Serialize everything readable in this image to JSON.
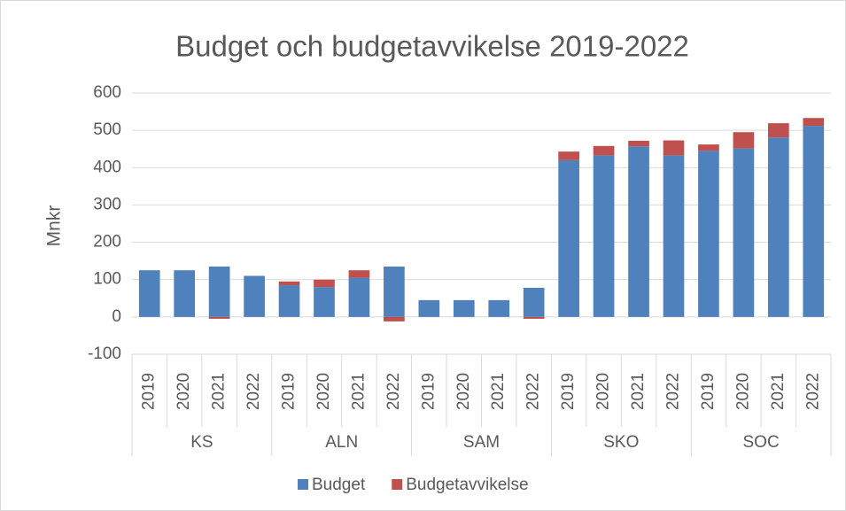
{
  "chart_data": {
    "type": "bar",
    "stacked": true,
    "title": "Budget och budgetavvikelse 2019-2022",
    "y_label": "Mnkr",
    "groups": [
      {
        "label": "KS",
        "categories": [
          "2019",
          "2020",
          "2021",
          "2022"
        ]
      },
      {
        "label": "ALN",
        "categories": [
          "2019",
          "2020",
          "2021",
          "2022"
        ]
      },
      {
        "label": "SAM",
        "categories": [
          "2019",
          "2020",
          "2021",
          "2022"
        ]
      },
      {
        "label": "SKO",
        "categories": [
          "2019",
          "2020",
          "2021",
          "2022"
        ]
      },
      {
        "label": "SOC",
        "categories": [
          "2019",
          "2020",
          "2021",
          "2022"
        ]
      }
    ],
    "series": [
      {
        "name": "Budget",
        "color": "#4f81bd",
        "values": [
          125,
          125,
          135,
          110,
          85,
          80,
          105,
          135,
          45,
          45,
          45,
          78,
          420,
          433,
          457,
          433,
          445,
          452,
          481,
          512
        ]
      },
      {
        "name": "Budgetavvikelse",
        "color": "#c0504d",
        "values": [
          0,
          0,
          -5,
          0,
          10,
          20,
          20,
          -12,
          0,
          0,
          0,
          -5,
          23,
          25,
          15,
          40,
          17,
          43,
          38,
          21
        ]
      }
    ],
    "ylim": [
      -100,
      600
    ],
    "yticks": [
      -100,
      0,
      100,
      200,
      300,
      400,
      500,
      600
    ],
    "grid": true,
    "legend": "bottom"
  }
}
